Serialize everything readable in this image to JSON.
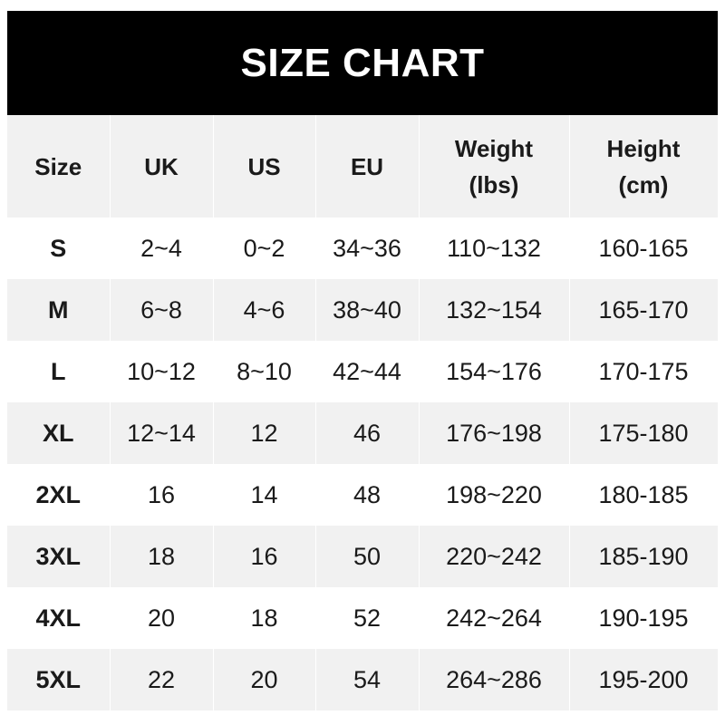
{
  "title": "SIZE CHART",
  "headers": [
    "Size",
    "UK",
    "US",
    "EU",
    "Weight\n(lbs)",
    "Height\n(cm)"
  ],
  "header_lines": {
    "weight": [
      "Weight",
      "(lbs)"
    ],
    "height": [
      "Height",
      "(cm)"
    ]
  },
  "rows": [
    [
      "S",
      "2~4",
      "0~2",
      "34~36",
      "110~132",
      "160-165"
    ],
    [
      "M",
      "6~8",
      "4~6",
      "38~40",
      "132~154",
      "165-170"
    ],
    [
      "L",
      "10~12",
      "8~10",
      "42~44",
      "154~176",
      "170-175"
    ],
    [
      "XL",
      "12~14",
      "12",
      "46",
      "176~198",
      "175-180"
    ],
    [
      "2XL",
      "16",
      "14",
      "48",
      "198~220",
      "180-185"
    ],
    [
      "3XL",
      "18",
      "16",
      "50",
      "220~242",
      "185-190"
    ],
    [
      "4XL",
      "20",
      "18",
      "52",
      "242~264",
      "190-195"
    ],
    [
      "5XL",
      "22",
      "20",
      "54",
      "264~286",
      "195-200"
    ]
  ],
  "colors": {
    "title_bg": "#000000",
    "stripe": "#f1f1f1",
    "text": "#1a1a1a"
  }
}
